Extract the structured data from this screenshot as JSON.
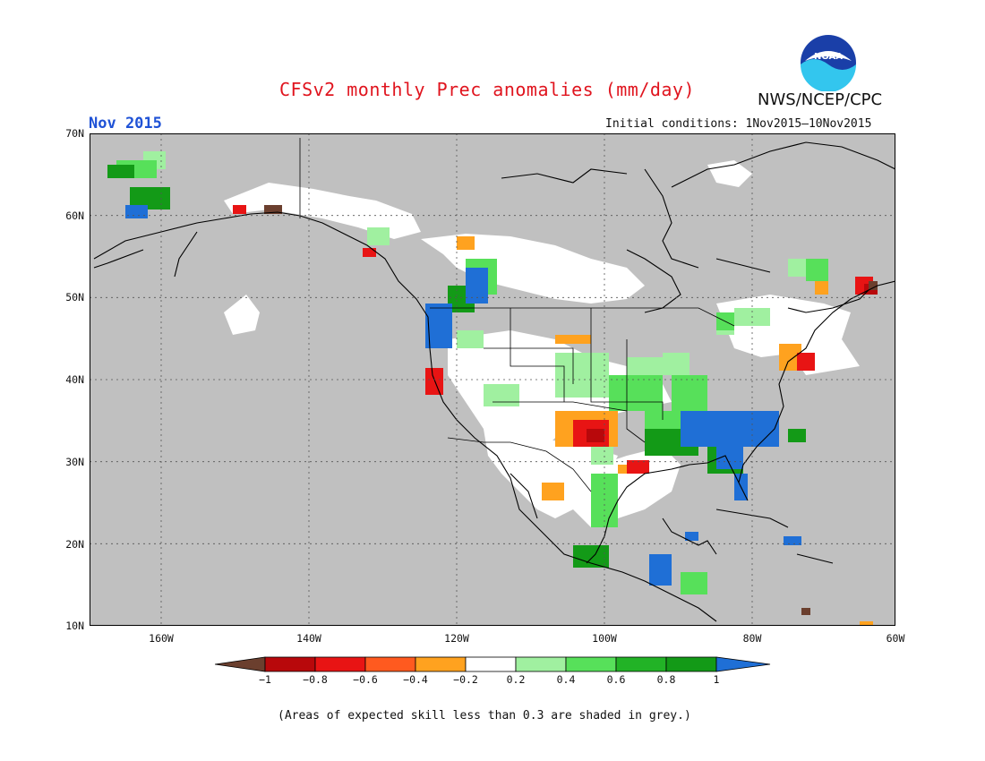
{
  "header": {
    "title": "CFSv2 monthly Prec anomalies (mm/day)",
    "month": "Nov 2015",
    "agency": "NWS/NCEP/CPC",
    "initial_conditions": "Initial conditions: 1Nov2015–10Nov2015",
    "logo_text": "NOAA"
  },
  "axes": {
    "lat_labels": [
      "70N",
      "60N",
      "50N",
      "40N",
      "30N",
      "20N",
      "10N"
    ],
    "lon_labels": [
      "160W",
      "140W",
      "120W",
      "100W",
      "80W",
      "60W"
    ]
  },
  "legend": {
    "labels": [
      "−1",
      "−0.8",
      "−0.6",
      "−0.4",
      "−0.2",
      "0.2",
      "0.4",
      "0.6",
      "0.8",
      "1"
    ],
    "colors": [
      "#5c3a2a",
      "#b8080b",
      "#e81414",
      "#ff5a1f",
      "#ffa21f",
      "#ffffff",
      "#a0f0a0",
      "#57e05a",
      "#22b326",
      "#139a17",
      "#1f6fd6"
    ],
    "low_arrow_color": "#6b3f2e",
    "high_arrow_color": "#1f6fd6"
  },
  "map": {
    "background_color": "#c0c0c0",
    "no_signal_color": "#ffffff"
  },
  "footnote": "(Areas of expected skill less than 0.3 are shaded in grey.)"
}
